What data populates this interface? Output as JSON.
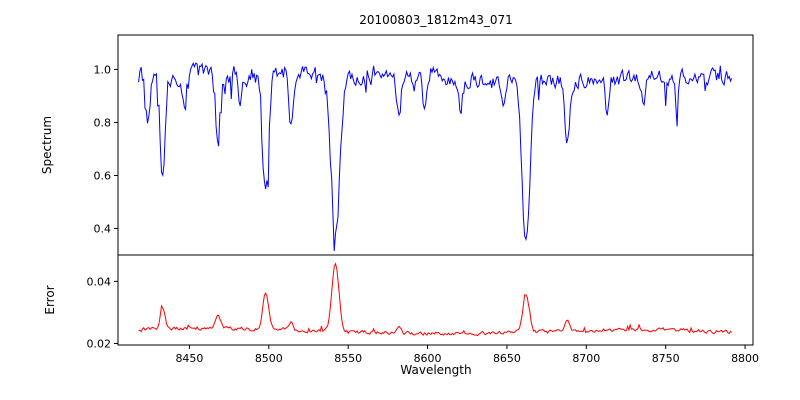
{
  "figure": {
    "background": "#ffffff",
    "axis_color": "#000000"
  },
  "chart_data": {
    "type": "line",
    "title": "20100803_1812m43_071",
    "xlabel": "Wavelength",
    "grid": false,
    "legend": "none",
    "xlim": [
      8405,
      8805
    ],
    "x_range": [
      8418,
      8792
    ],
    "xticks": [
      8450,
      8500,
      8550,
      8600,
      8650,
      8700,
      8750,
      8800
    ],
    "panels": [
      {
        "name": "spectrum",
        "ylabel": "Spectrum",
        "color": "#0000ff",
        "ylim": [
          0.3,
          1.13
        ],
        "yticks": [
          0.4,
          0.6,
          0.8,
          1.0
        ],
        "ytick_labels": [
          "0.4",
          "0.6",
          "0.8",
          "1.0"
        ],
        "continuum": 0.97,
        "noise_sigma": 0.03,
        "absorption_lines": [
          {
            "center": 8424,
            "depth": 0.19,
            "sigma": 1.2
          },
          {
            "center": 8433,
            "depth": 0.4,
            "sigma": 1.5
          },
          {
            "center": 8447,
            "depth": 0.15,
            "sigma": 1.1
          },
          {
            "center": 8468,
            "depth": 0.28,
            "sigma": 1.5
          },
          {
            "center": 8482,
            "depth": 0.13,
            "sigma": 1.1
          },
          {
            "center": 8498,
            "depth": 0.46,
            "sigma": 2.0
          },
          {
            "center": 8514,
            "depth": 0.17,
            "sigma": 1.2
          },
          {
            "center": 8542,
            "depth": 0.62,
            "sigma": 2.6
          },
          {
            "center": 8582,
            "depth": 0.15,
            "sigma": 1.2
          },
          {
            "center": 8598,
            "depth": 0.13,
            "sigma": 1.1
          },
          {
            "center": 8621,
            "depth": 0.13,
            "sigma": 1.1
          },
          {
            "center": 8648,
            "depth": 0.1,
            "sigma": 1.0
          },
          {
            "center": 8662,
            "depth": 0.61,
            "sigma": 2.4
          },
          {
            "center": 8688,
            "depth": 0.24,
            "sigma": 1.4
          },
          {
            "center": 8713,
            "depth": 0.13,
            "sigma": 1.1
          },
          {
            "center": 8736,
            "depth": 0.12,
            "sigma": 1.1
          },
          {
            "center": 8757,
            "depth": 0.11,
            "sigma": 1.0
          }
        ]
      },
      {
        "name": "error",
        "ylabel": "Error",
        "color": "#ff0000",
        "ylim": [
          0.0195,
          0.0485
        ],
        "yticks": [
          0.02,
          0.04
        ],
        "ytick_labels": [
          "0.02",
          "0.04"
        ],
        "baseline": 0.0243,
        "noise_sigma": 0.0006,
        "peaks": [
          {
            "center": 8433,
            "height": 0.007,
            "sigma": 1.5
          },
          {
            "center": 8468,
            "height": 0.0045,
            "sigma": 1.5
          },
          {
            "center": 8498,
            "height": 0.0115,
            "sigma": 1.8
          },
          {
            "center": 8514,
            "height": 0.0028,
            "sigma": 1.2
          },
          {
            "center": 8542,
            "height": 0.022,
            "sigma": 2.2
          },
          {
            "center": 8582,
            "height": 0.002,
            "sigma": 1.2
          },
          {
            "center": 8662,
            "height": 0.0125,
            "sigma": 2.0
          },
          {
            "center": 8688,
            "height": 0.0038,
            "sigma": 1.4
          }
        ]
      }
    ]
  }
}
